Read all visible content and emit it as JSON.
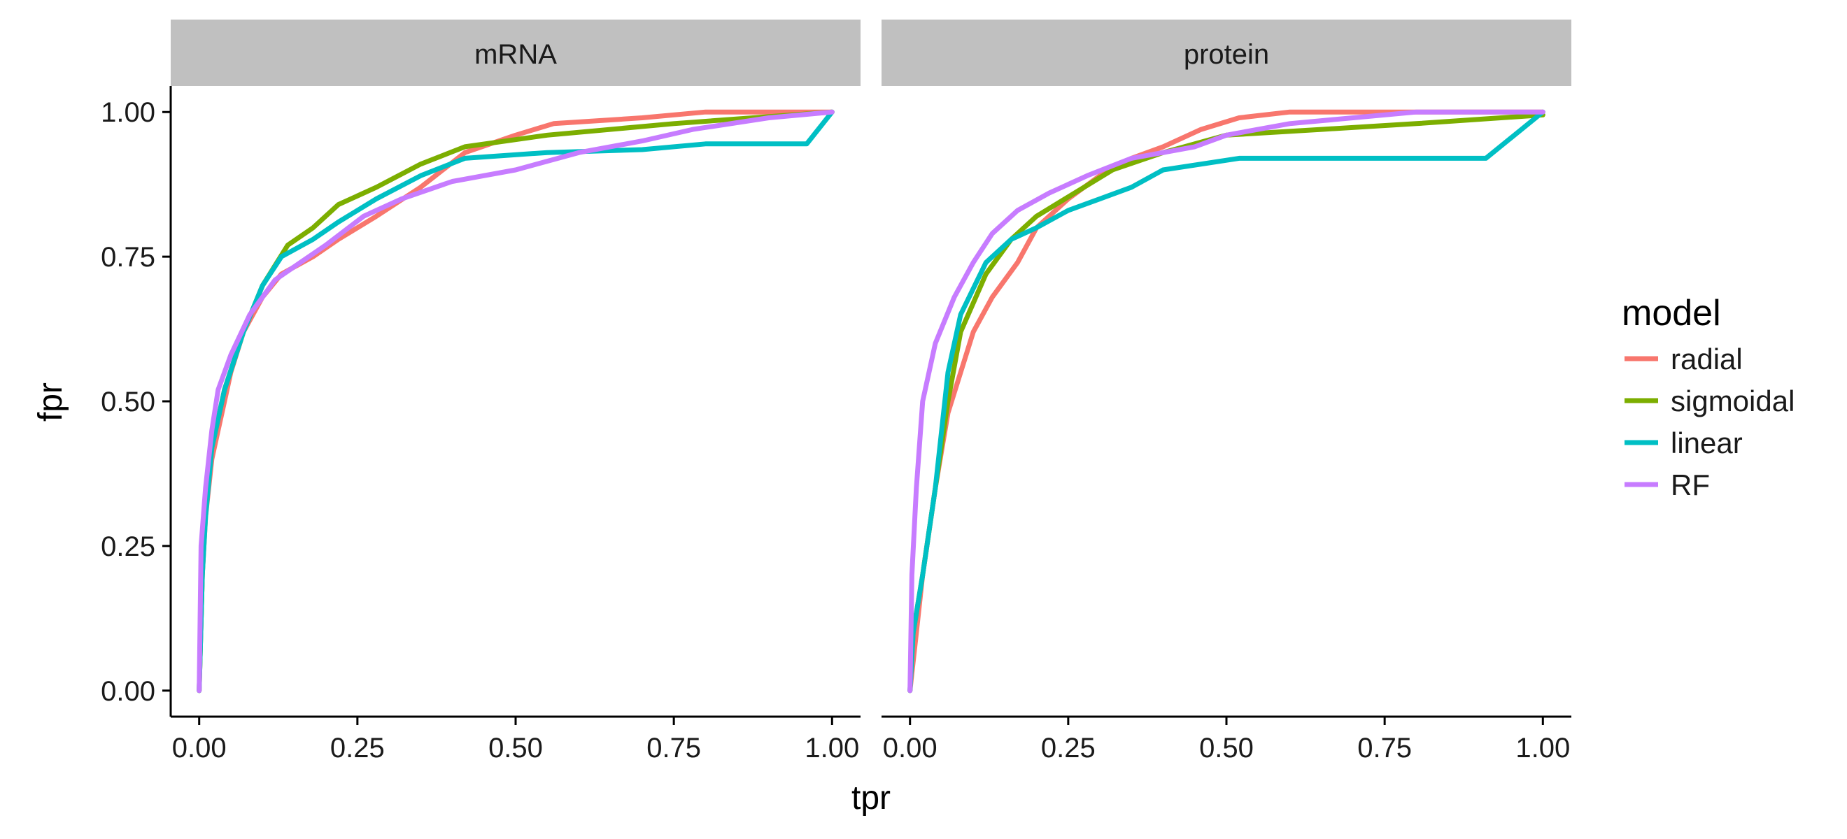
{
  "chart_data": {
    "type": "line",
    "xlabel": "tpr",
    "ylabel": "fpr",
    "xlim": [
      0,
      1
    ],
    "ylim": [
      0,
      1
    ],
    "x_ticks": [
      "0.00",
      "0.25",
      "0.50",
      "0.75",
      "1.00"
    ],
    "y_ticks": [
      "0.00",
      "0.25",
      "0.50",
      "0.75",
      "1.00"
    ],
    "grid": false,
    "legend": {
      "title": "model",
      "placement": "right",
      "entries": [
        {
          "name": "radial",
          "color": "#F8766D"
        },
        {
          "name": "sigmoidal",
          "color": "#7CAE00"
        },
        {
          "name": "linear",
          "color": "#00BFC4"
        },
        {
          "name": "RF",
          "color": "#C77CFF"
        }
      ]
    },
    "facets": [
      {
        "label": "mRNA",
        "series": [
          {
            "name": "radial",
            "color": "#F8766D",
            "points": [
              [
                0,
                0
              ],
              [
                0.005,
                0.2
              ],
              [
                0.01,
                0.3
              ],
              [
                0.02,
                0.4
              ],
              [
                0.03,
                0.45
              ],
              [
                0.04,
                0.5
              ],
              [
                0.05,
                0.55
              ],
              [
                0.07,
                0.62
              ],
              [
                0.1,
                0.68
              ],
              [
                0.13,
                0.72
              ],
              [
                0.18,
                0.75
              ],
              [
                0.22,
                0.78
              ],
              [
                0.28,
                0.82
              ],
              [
                0.35,
                0.87
              ],
              [
                0.42,
                0.93
              ],
              [
                0.5,
                0.96
              ],
              [
                0.56,
                0.98
              ],
              [
                0.7,
                0.99
              ],
              [
                0.8,
                1.0
              ],
              [
                1.0,
                1.0
              ]
            ]
          },
          {
            "name": "sigmoidal",
            "color": "#7CAE00",
            "points": [
              [
                0,
                0
              ],
              [
                0.005,
                0.2
              ],
              [
                0.01,
                0.32
              ],
              [
                0.02,
                0.42
              ],
              [
                0.04,
                0.52
              ],
              [
                0.07,
                0.62
              ],
              [
                0.1,
                0.7
              ],
              [
                0.14,
                0.77
              ],
              [
                0.18,
                0.8
              ],
              [
                0.22,
                0.84
              ],
              [
                0.28,
                0.87
              ],
              [
                0.35,
                0.91
              ],
              [
                0.42,
                0.94
              ],
              [
                0.55,
                0.96
              ],
              [
                0.75,
                0.98
              ],
              [
                1.0,
                1.0
              ]
            ]
          },
          {
            "name": "linear",
            "color": "#00BFC4",
            "points": [
              [
                0,
                0
              ],
              [
                0.005,
                0.2
              ],
              [
                0.01,
                0.3
              ],
              [
                0.02,
                0.42
              ],
              [
                0.04,
                0.52
              ],
              [
                0.07,
                0.62
              ],
              [
                0.1,
                0.7
              ],
              [
                0.13,
                0.75
              ],
              [
                0.18,
                0.78
              ],
              [
                0.22,
                0.81
              ],
              [
                0.28,
                0.85
              ],
              [
                0.35,
                0.89
              ],
              [
                0.42,
                0.92
              ],
              [
                0.55,
                0.93
              ],
              [
                0.7,
                0.935
              ],
              [
                0.8,
                0.945
              ],
              [
                0.96,
                0.945
              ],
              [
                1.0,
                1.0
              ]
            ]
          },
          {
            "name": "RF",
            "color": "#C77CFF",
            "points": [
              [
                0,
                0
              ],
              [
                0.003,
                0.25
              ],
              [
                0.01,
                0.35
              ],
              [
                0.02,
                0.45
              ],
              [
                0.03,
                0.52
              ],
              [
                0.05,
                0.58
              ],
              [
                0.08,
                0.65
              ],
              [
                0.12,
                0.71
              ],
              [
                0.16,
                0.74
              ],
              [
                0.2,
                0.77
              ],
              [
                0.26,
                0.82
              ],
              [
                0.32,
                0.85
              ],
              [
                0.4,
                0.88
              ],
              [
                0.5,
                0.9
              ],
              [
                0.6,
                0.93
              ],
              [
                0.7,
                0.95
              ],
              [
                0.78,
                0.97
              ],
              [
                0.9,
                0.99
              ],
              [
                1.0,
                1.0
              ]
            ]
          }
        ]
      },
      {
        "label": "protein",
        "series": [
          {
            "name": "radial",
            "color": "#F8766D",
            "points": [
              [
                0,
                0
              ],
              [
                0.01,
                0.1
              ],
              [
                0.02,
                0.2
              ],
              [
                0.04,
                0.35
              ],
              [
                0.06,
                0.48
              ],
              [
                0.08,
                0.55
              ],
              [
                0.1,
                0.62
              ],
              [
                0.13,
                0.68
              ],
              [
                0.17,
                0.74
              ],
              [
                0.2,
                0.8
              ],
              [
                0.25,
                0.85
              ],
              [
                0.3,
                0.89
              ],
              [
                0.35,
                0.92
              ],
              [
                0.4,
                0.94
              ],
              [
                0.46,
                0.97
              ],
              [
                0.52,
                0.99
              ],
              [
                0.6,
                1.0
              ],
              [
                1.0,
                1.0
              ]
            ]
          },
          {
            "name": "sigmoidal",
            "color": "#7CAE00",
            "points": [
              [
                0,
                0
              ],
              [
                0.005,
                0.1
              ],
              [
                0.02,
                0.2
              ],
              [
                0.04,
                0.35
              ],
              [
                0.06,
                0.5
              ],
              [
                0.08,
                0.62
              ],
              [
                0.12,
                0.72
              ],
              [
                0.16,
                0.78
              ],
              [
                0.2,
                0.82
              ],
              [
                0.26,
                0.86
              ],
              [
                0.32,
                0.9
              ],
              [
                0.4,
                0.93
              ],
              [
                0.5,
                0.96
              ],
              [
                0.65,
                0.97
              ],
              [
                0.8,
                0.98
              ],
              [
                1.0,
                0.995
              ]
            ]
          },
          {
            "name": "linear",
            "color": "#00BFC4",
            "points": [
              [
                0,
                0
              ],
              [
                0.005,
                0.1
              ],
              [
                0.02,
                0.2
              ],
              [
                0.04,
                0.35
              ],
              [
                0.06,
                0.55
              ],
              [
                0.08,
                0.65
              ],
              [
                0.12,
                0.74
              ],
              [
                0.16,
                0.78
              ],
              [
                0.2,
                0.8
              ],
              [
                0.25,
                0.83
              ],
              [
                0.3,
                0.85
              ],
              [
                0.35,
                0.87
              ],
              [
                0.4,
                0.9
              ],
              [
                0.52,
                0.92
              ],
              [
                0.7,
                0.92
              ],
              [
                0.91,
                0.92
              ],
              [
                1.0,
                1.0
              ]
            ]
          },
          {
            "name": "RF",
            "color": "#C77CFF",
            "points": [
              [
                0,
                0
              ],
              [
                0.003,
                0.2
              ],
              [
                0.01,
                0.35
              ],
              [
                0.02,
                0.5
              ],
              [
                0.04,
                0.6
              ],
              [
                0.07,
                0.68
              ],
              [
                0.1,
                0.74
              ],
              [
                0.13,
                0.79
              ],
              [
                0.17,
                0.83
              ],
              [
                0.22,
                0.86
              ],
              [
                0.28,
                0.89
              ],
              [
                0.35,
                0.92
              ],
              [
                0.45,
                0.94
              ],
              [
                0.5,
                0.96
              ],
              [
                0.6,
                0.98
              ],
              [
                0.7,
                0.99
              ],
              [
                0.8,
                1.0
              ],
              [
                1.0,
                1.0
              ]
            ]
          }
        ]
      }
    ]
  }
}
